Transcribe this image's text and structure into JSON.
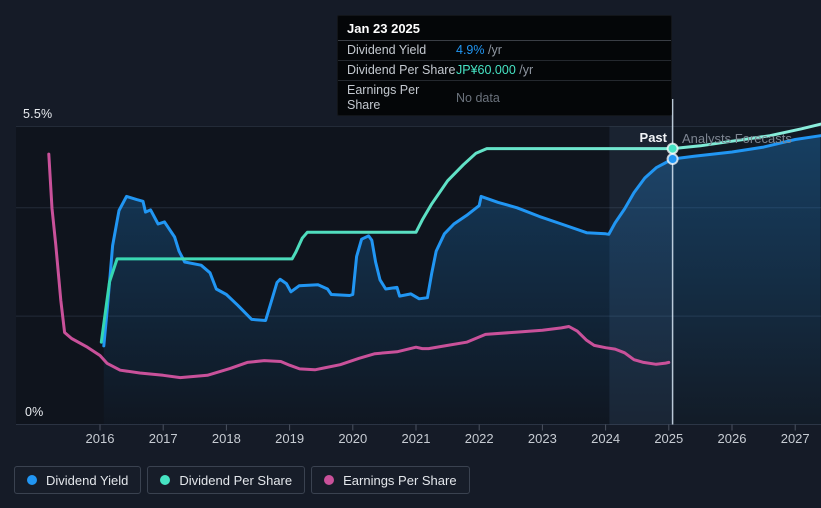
{
  "tooltip": {
    "title": "Jan 23 2025",
    "rows": [
      {
        "label": "Dividend Yield",
        "value": "4.9%",
        "unit": "/yr",
        "color": "#2196f3"
      },
      {
        "label": "Dividend Per Share",
        "value": "JP¥60.000",
        "unit": "/yr",
        "color": "#46e3c3"
      },
      {
        "label": "Earnings Per Share",
        "value": "No data",
        "unit": "",
        "color": "#6b727c"
      }
    ]
  },
  "annotations": {
    "past_label": "Past",
    "forecast_label": "Analysts Forecasts"
  },
  "y_axis": {
    "top_label": "5.5%",
    "bottom_label": "0%"
  },
  "colors": {
    "background": "#151b27",
    "plot_background": "#0f141d",
    "gridline": "#232b38",
    "axis_line": "#2b3342",
    "tick": "#4b5260",
    "past_band": "rgba(125,175,230,0.10)",
    "forecast_band": "rgba(125,175,230,0.035)",
    "divider": "rgba(215,230,245,0.85)"
  },
  "chart_data": {
    "type": "line",
    "x_ticks": [
      2016,
      2017,
      2018,
      2019,
      2020,
      2021,
      2022,
      2023,
      2024,
      2025,
      2026,
      2027
    ],
    "x_range": [
      2015.1,
      2027.45
    ],
    "y_axis_pct": {
      "min": 0,
      "max": 5.5,
      "gridlines_pct": [
        4,
        2
      ]
    },
    "y_axis_jpy": {
      "min": 0,
      "max": 64.8
    },
    "divider_x": 2025.06,
    "past_band": [
      2024.06,
      2025.06
    ],
    "legend_position": "bottom-left",
    "series": [
      {
        "name": "Dividend Yield",
        "axis": "pct",
        "color": "#2196f3",
        "fill": true,
        "points": [
          [
            2016.06,
            1.45
          ],
          [
            2016.12,
            2.2
          ],
          [
            2016.2,
            3.3
          ],
          [
            2016.3,
            3.95
          ],
          [
            2016.42,
            4.21
          ],
          [
            2016.58,
            4.15
          ],
          [
            2016.68,
            4.12
          ],
          [
            2016.72,
            3.92
          ],
          [
            2016.8,
            3.96
          ],
          [
            2016.92,
            3.7
          ],
          [
            2017.02,
            3.74
          ],
          [
            2017.18,
            3.46
          ],
          [
            2017.25,
            3.2
          ],
          [
            2017.34,
            3.0
          ],
          [
            2017.6,
            2.94
          ],
          [
            2017.74,
            2.8
          ],
          [
            2017.84,
            2.5
          ],
          [
            2018.0,
            2.4
          ],
          [
            2018.18,
            2.2
          ],
          [
            2018.4,
            1.94
          ],
          [
            2018.62,
            1.92
          ],
          [
            2018.8,
            2.62
          ],
          [
            2018.85,
            2.68
          ],
          [
            2018.95,
            2.6
          ],
          [
            2019.02,
            2.45
          ],
          [
            2019.15,
            2.56
          ],
          [
            2019.45,
            2.58
          ],
          [
            2019.6,
            2.5
          ],
          [
            2019.66,
            2.4
          ],
          [
            2019.95,
            2.38
          ],
          [
            2020.0,
            2.4
          ],
          [
            2020.06,
            3.1
          ],
          [
            2020.14,
            3.42
          ],
          [
            2020.25,
            3.48
          ],
          [
            2020.3,
            3.4
          ],
          [
            2020.36,
            3.0
          ],
          [
            2020.43,
            2.67
          ],
          [
            2020.52,
            2.5
          ],
          [
            2020.7,
            2.53
          ],
          [
            2020.74,
            2.37
          ],
          [
            2020.92,
            2.41
          ],
          [
            2021.05,
            2.32
          ],
          [
            2021.18,
            2.34
          ],
          [
            2021.25,
            2.8
          ],
          [
            2021.32,
            3.2
          ],
          [
            2021.45,
            3.52
          ],
          [
            2021.6,
            3.7
          ],
          [
            2021.8,
            3.86
          ],
          [
            2022.0,
            4.04
          ],
          [
            2022.03,
            4.21
          ],
          [
            2022.3,
            4.1
          ],
          [
            2022.6,
            4.0
          ],
          [
            2022.95,
            3.84
          ],
          [
            2023.3,
            3.7
          ],
          [
            2023.7,
            3.54
          ],
          [
            2024.0,
            3.52
          ],
          [
            2024.05,
            3.51
          ],
          [
            2024.15,
            3.72
          ],
          [
            2024.3,
            3.98
          ],
          [
            2024.45,
            4.28
          ],
          [
            2024.62,
            4.55
          ],
          [
            2024.8,
            4.74
          ],
          [
            2025.06,
            4.9
          ],
          [
            2025.4,
            4.95
          ],
          [
            2026.0,
            5.03
          ],
          [
            2026.5,
            5.12
          ],
          [
            2027.0,
            5.26
          ],
          [
            2027.4,
            5.33
          ]
        ]
      },
      {
        "name": "Dividend Per Share",
        "axis": "jpy",
        "color": "#46e3c3",
        "gradient": [
          "#35d6b0",
          "#8ceedd"
        ],
        "points": [
          [
            2016.02,
            17.9
          ],
          [
            2016.08,
            24
          ],
          [
            2016.15,
            31
          ],
          [
            2016.27,
            36
          ],
          [
            2019.04,
            36
          ],
          [
            2019.1,
            37.5
          ],
          [
            2019.2,
            40.5
          ],
          [
            2019.28,
            41.8
          ],
          [
            2021.0,
            41.8
          ],
          [
            2021.1,
            44.5
          ],
          [
            2021.25,
            48
          ],
          [
            2021.5,
            53
          ],
          [
            2021.75,
            56.5
          ],
          [
            2021.95,
            59
          ],
          [
            2022.12,
            60
          ],
          [
            2025.06,
            60
          ],
          [
            2025.5,
            60.6
          ],
          [
            2026.0,
            61.6
          ],
          [
            2026.6,
            62.8
          ],
          [
            2027.1,
            64.3
          ],
          [
            2027.4,
            65.3
          ]
        ]
      },
      {
        "name": "Earnings Per Share",
        "axis": "jpy",
        "color": "#c9519a",
        "points": [
          [
            2015.19,
            58.8
          ],
          [
            2015.24,
            47
          ],
          [
            2015.3,
            39
          ],
          [
            2015.38,
            27
          ],
          [
            2015.44,
            20.0
          ],
          [
            2015.55,
            18.7
          ],
          [
            2015.8,
            16.8
          ],
          [
            2016.0,
            15.0
          ],
          [
            2016.11,
            13.3
          ],
          [
            2016.32,
            11.8
          ],
          [
            2016.63,
            11.2
          ],
          [
            2017.0,
            10.7
          ],
          [
            2017.27,
            10.2
          ],
          [
            2017.7,
            10.7
          ],
          [
            2018.06,
            12.2
          ],
          [
            2018.33,
            13.5
          ],
          [
            2018.6,
            13.9
          ],
          [
            2018.86,
            13.7
          ],
          [
            2019.0,
            12.9
          ],
          [
            2019.16,
            12.1
          ],
          [
            2019.4,
            11.9
          ],
          [
            2019.55,
            12.3
          ],
          [
            2019.8,
            13.0
          ],
          [
            2020.1,
            14.4
          ],
          [
            2020.35,
            15.4
          ],
          [
            2020.7,
            15.8
          ],
          [
            2021.0,
            16.8
          ],
          [
            2021.1,
            16.5
          ],
          [
            2021.2,
            16.5
          ],
          [
            2021.5,
            17.2
          ],
          [
            2021.8,
            17.9
          ],
          [
            2022.1,
            19.6
          ],
          [
            2022.6,
            20.1
          ],
          [
            2023.0,
            20.5
          ],
          [
            2023.3,
            21.0
          ],
          [
            2023.42,
            21.3
          ],
          [
            2023.55,
            20.3
          ],
          [
            2023.7,
            18.3
          ],
          [
            2023.82,
            17.2
          ],
          [
            2024.0,
            16.7
          ],
          [
            2024.15,
            16.4
          ],
          [
            2024.3,
            15.6
          ],
          [
            2024.45,
            14.1
          ],
          [
            2024.6,
            13.5
          ],
          [
            2024.8,
            13.1
          ],
          [
            2024.95,
            13.35
          ],
          [
            2025.0,
            13.5
          ]
        ]
      }
    ],
    "markers": [
      {
        "series": 1,
        "x": 2025.06,
        "y": 60
      },
      {
        "series": 0,
        "x": 2025.06,
        "y": 4.9
      }
    ]
  }
}
